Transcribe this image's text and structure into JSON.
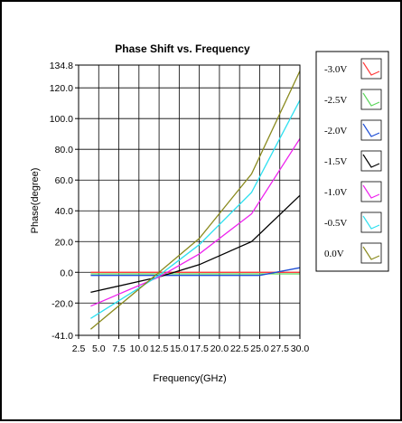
{
  "chart_data": {
    "type": "line",
    "title": "Phase Shift vs. Frequency",
    "xlabel": "Frequency(GHz)",
    "ylabel": "Phase(degree)",
    "xlim": [
      2.5,
      30.0
    ],
    "ylim": [
      -41.0,
      134.8
    ],
    "x_ticks": [
      "2.5",
      "5.0",
      "7.5",
      "10.0",
      "12.5",
      "15.0",
      "17.5",
      "20.0",
      "22.5",
      "25.0",
      "27.5",
      "30.0"
    ],
    "y_ticks": [
      {
        "label": "134.8",
        "value": 134.8
      },
      {
        "label": "120.0",
        "value": 120.0
      },
      {
        "label": "100.0",
        "value": 100.0
      },
      {
        "label": "80.0",
        "value": 80.0
      },
      {
        "label": "60.0",
        "value": 60.0
      },
      {
        "label": "40.0",
        "value": 40.0
      },
      {
        "label": "20.0",
        "value": 20.0
      },
      {
        "label": "0.0",
        "value": 0.0
      },
      {
        "label": "-20.0",
        "value": -20.0
      },
      {
        "label": "-41.0",
        "value": -41.0
      }
    ],
    "grid": true,
    "legend_position": "right",
    "series": [
      {
        "name": "-3.0V",
        "color": "#ff3b3b",
        "x": [
          4,
          30
        ],
        "y": [
          0,
          0
        ]
      },
      {
        "name": "-2.5V",
        "color": "#5cd65c",
        "x": [
          4,
          30
        ],
        "y": [
          -1,
          -1
        ]
      },
      {
        "name": "-2.0V",
        "color": "#1f4fd6",
        "x": [
          4,
          12.5,
          25,
          30
        ],
        "y": [
          -2,
          -2,
          -2,
          3
        ]
      },
      {
        "name": "-1.5V",
        "color": "#000000",
        "x": [
          4,
          12.5,
          17.5,
          24,
          30
        ],
        "y": [
          -13,
          -3,
          5,
          20,
          50
        ]
      },
      {
        "name": "-1.0V",
        "color": "#ee22ee",
        "x": [
          4,
          12.5,
          17.5,
          24,
          30
        ],
        "y": [
          -22,
          -3,
          12,
          38,
          87
        ]
      },
      {
        "name": "-0.5V",
        "color": "#2fe0f0",
        "x": [
          4,
          12.5,
          17.5,
          24,
          30
        ],
        "y": [
          -30,
          -2,
          18,
          52,
          112
        ]
      },
      {
        "name": "0.0V",
        "color": "#8a8a1e",
        "x": [
          4,
          12.5,
          17.5,
          24,
          30
        ],
        "y": [
          -37,
          0,
          22,
          64,
          131
        ]
      }
    ]
  }
}
